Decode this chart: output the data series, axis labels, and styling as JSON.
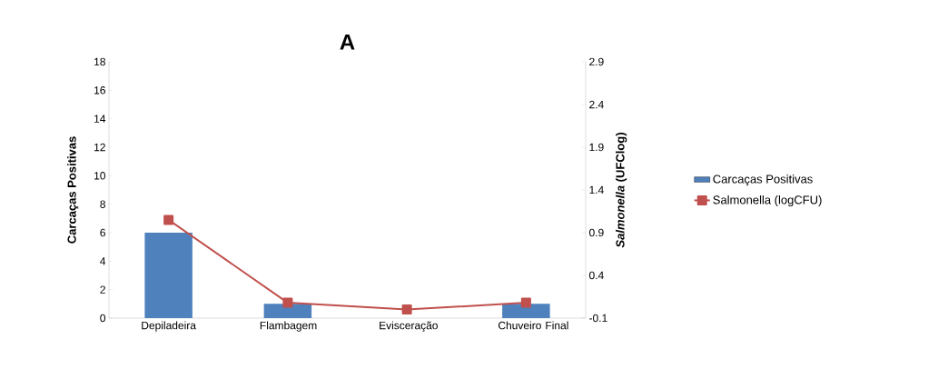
{
  "chart_data": {
    "type": "bar",
    "title": "A",
    "ylabel": "Carcaças Positivas",
    "y2label": "*Salmonella* (UFClog)",
    "categories": [
      "Depiladeira",
      "Flambagem",
      "Evisceração",
      "Chuveiro Final"
    ],
    "series": [
      {
        "name": "Carcaças Positivas",
        "color": "#4f81bd",
        "values": [
          6,
          1,
          0,
          1
        ]
      },
      {
        "name": "Salmonella (logCFU)",
        "type": "line",
        "axis": "y2",
        "color": "#c0504d",
        "marker": "square",
        "values": [
          1.05,
          0.08,
          0.0,
          0.08
        ]
      }
    ],
    "ylim": [
      0,
      18
    ],
    "yticks": [
      0,
      2,
      4,
      6,
      8,
      10,
      12,
      14,
      16,
      18
    ],
    "y2lim": [
      -0.1,
      2.9
    ],
    "y2ticks": [
      -0.1,
      0.4,
      0.9,
      1.4,
      1.9,
      2.4,
      2.9
    ],
    "grid": false,
    "legend": "right"
  }
}
